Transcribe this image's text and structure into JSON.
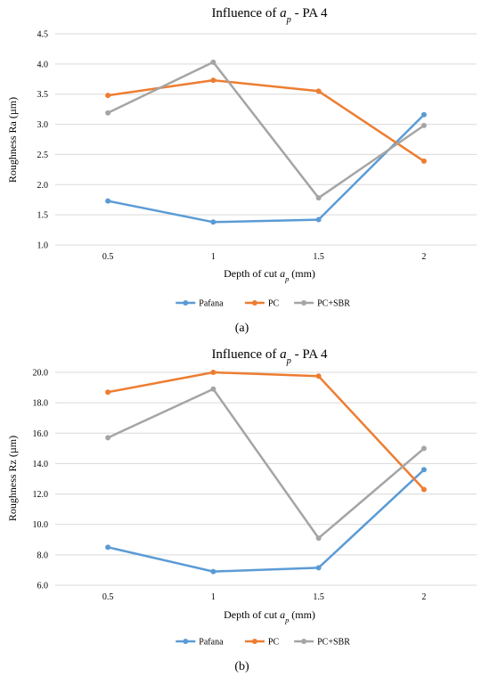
{
  "chart_data": [
    {
      "type": "line",
      "panel": "(a)",
      "title": "Influence of a_p - PA 4",
      "title_parts": {
        "pre": "Influence of ",
        "sym": "a",
        "sub": "p",
        "post": " - PA 4"
      },
      "xlabel": "Depth of cut a_p (mm)",
      "xlabel_parts": {
        "pre": "Depth of cut ",
        "sym": "a",
        "sub": "p",
        "post": " (mm)"
      },
      "ylabel": "Roughness Ra (µm)",
      "categories": [
        "0.5",
        "1",
        "1.5",
        "2"
      ],
      "ylim": [
        1.0,
        4.5
      ],
      "yticks": [
        1.0,
        1.5,
        2.0,
        2.5,
        3.0,
        3.5,
        4.0,
        4.5
      ],
      "ytick_labels": [
        "1.0",
        "1.5",
        "2.0",
        "2.5",
        "3.0",
        "3.5",
        "4.0",
        "4.5"
      ],
      "grid": true,
      "legend_position": "bottom",
      "series": [
        {
          "name": "Pafana",
          "color": "#5b9bd5",
          "values": [
            1.73,
            1.38,
            1.42,
            3.16
          ]
        },
        {
          "name": "PC",
          "color": "#ed7d31",
          "values": [
            3.48,
            3.73,
            3.55,
            2.39
          ]
        },
        {
          "name": "PC+SBR",
          "color": "#a5a5a5",
          "values": [
            3.19,
            4.03,
            1.78,
            2.98
          ]
        }
      ]
    },
    {
      "type": "line",
      "panel": "(b)",
      "title": "Influence of a_p - PA 4",
      "title_parts": {
        "pre": "Influence of ",
        "sym": "a",
        "sub": "p",
        "post": " - PA 4"
      },
      "xlabel": "Depth of cut a_p (mm)",
      "xlabel_parts": {
        "pre": "Depth of cut ",
        "sym": "a",
        "sub": "p",
        "post": " (mm)"
      },
      "ylabel": "Roughness Rz (µm)",
      "categories": [
        "0.5",
        "1",
        "1.5",
        "2"
      ],
      "ylim": [
        6.0,
        20.0
      ],
      "yticks": [
        6.0,
        8.0,
        10.0,
        12.0,
        14.0,
        16.0,
        18.0,
        20.0
      ],
      "ytick_labels": [
        "6.0",
        "8.0",
        "10.0",
        "12.0",
        "14.0",
        "16.0",
        "18.0",
        "20.0"
      ],
      "grid": true,
      "legend_position": "bottom",
      "series": [
        {
          "name": "Pafana",
          "color": "#5b9bd5",
          "values": [
            8.5,
            6.9,
            7.15,
            13.6
          ]
        },
        {
          "name": "PC",
          "color": "#ed7d31",
          "values": [
            18.7,
            20.0,
            19.75,
            12.3
          ]
        },
        {
          "name": "PC+SBR",
          "color": "#a5a5a5",
          "values": [
            15.7,
            18.9,
            9.1,
            15.0
          ]
        }
      ]
    }
  ]
}
